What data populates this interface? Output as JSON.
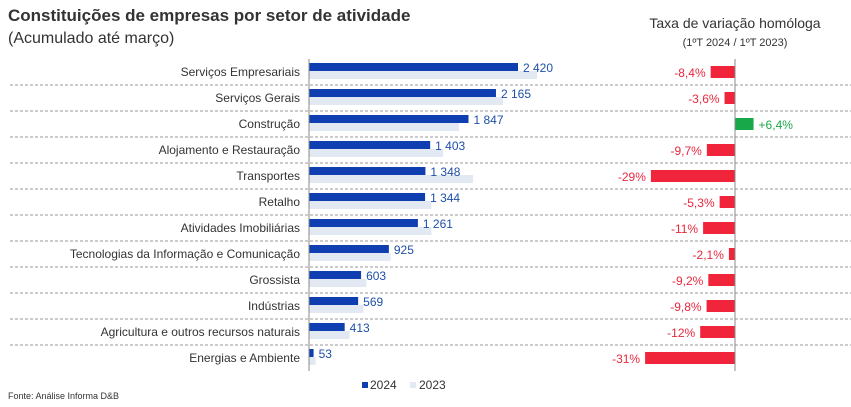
{
  "chart_data": [
    {
      "type": "bar",
      "orientation": "horizontal",
      "title": "Constituições de empresas por setor de atividade",
      "subtitle": "(Acumulado até março)",
      "categories": [
        "Serviços Empresariais",
        "Serviços Gerais",
        "Construção",
        "Alojamento e Restauração",
        "Transportes",
        "Retalho",
        "Atividades Imobiliárias",
        "Tecnologias da Informação e Comunicação",
        "Grossista",
        "Indústrias",
        "Agricultura e outros recursos naturais",
        "Energias e Ambiente"
      ],
      "series": [
        {
          "name": "2024",
          "color": "#0f3eb0",
          "values": [
            2420,
            2165,
            1847,
            1403,
            1348,
            1344,
            1261,
            925,
            603,
            569,
            413,
            53
          ],
          "labels": [
            "2 420",
            "2 165",
            "1 847",
            "1 403",
            "1 348",
            "1 344",
            "1 261",
            "925",
            "603",
            "569",
            "413",
            "53"
          ]
        },
        {
          "name": "2023",
          "color": "#e3e9f2",
          "values": [
            2642,
            2246,
            1736,
            1554,
            1899,
            1419,
            1417,
            945,
            664,
            631,
            469,
            77
          ]
        }
      ],
      "legend": "bottom",
      "grid": false
    },
    {
      "type": "bar",
      "orientation": "horizontal",
      "title": "Taxa de variação homóloga",
      "subtitle": "(1ºT 2024 / 1ºT 2023)",
      "values": [
        -8.4,
        -3.6,
        6.4,
        -9.7,
        -29,
        -5.3,
        -11,
        -2.1,
        -9.2,
        -9.8,
        -12,
        -31
      ],
      "labels": [
        "-8,4%",
        "-3,6%",
        "+6,4%",
        "-9,7%",
        "-29%",
        "-5,3%",
        "-11%",
        "-2,1%",
        "-9,2%",
        "-9,8%",
        "-12%",
        "-31%"
      ],
      "colors": {
        "negative": "#f0243a",
        "positive": "#18a84a",
        "negative_label": "#e8283e",
        "positive_label": "#18a84a"
      }
    }
  ],
  "source": "Fonte: Análise Informa D&B"
}
